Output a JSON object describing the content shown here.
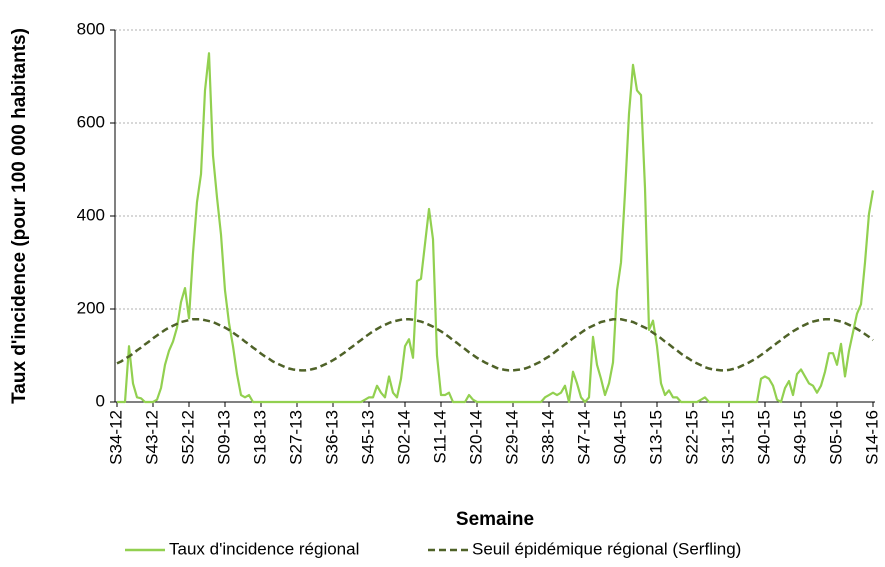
{
  "chart_data": {
    "type": "line",
    "xlabel": "Semaine",
    "ylabel": "Taux d'incidence (pour 100 000 habitants)",
    "categories": [
      "S34-12",
      null,
      null,
      null,
      null,
      null,
      null,
      null,
      null,
      "S43-12",
      null,
      null,
      null,
      null,
      null,
      null,
      null,
      null,
      "S52-12",
      null,
      null,
      null,
      null,
      null,
      null,
      null,
      null,
      "S09-13",
      null,
      null,
      null,
      null,
      null,
      null,
      null,
      null,
      "S18-13",
      null,
      null,
      null,
      null,
      null,
      null,
      null,
      null,
      "S27-13",
      null,
      null,
      null,
      null,
      null,
      null,
      null,
      null,
      "S36-13",
      null,
      null,
      null,
      null,
      null,
      null,
      null,
      null,
      "S45-13",
      null,
      null,
      null,
      null,
      null,
      null,
      null,
      null,
      "S02-14",
      null,
      null,
      null,
      null,
      null,
      null,
      null,
      null,
      "S11-14",
      null,
      null,
      null,
      null,
      null,
      null,
      null,
      null,
      "S20-14",
      null,
      null,
      null,
      null,
      null,
      null,
      null,
      null,
      "S29-14",
      null,
      null,
      null,
      null,
      null,
      null,
      null,
      null,
      "S38-14",
      null,
      null,
      null,
      null,
      null,
      null,
      null,
      null,
      "S47-14",
      null,
      null,
      null,
      null,
      null,
      null,
      null,
      null,
      "S04-15",
      null,
      null,
      null,
      null,
      null,
      null,
      null,
      null,
      "S13-15",
      null,
      null,
      null,
      null,
      null,
      null,
      null,
      null,
      "S22-15",
      null,
      null,
      null,
      null,
      null,
      null,
      null,
      null,
      "S31-15",
      null,
      null,
      null,
      null,
      null,
      null,
      null,
      null,
      "S40-15",
      null,
      null,
      null,
      null,
      null,
      null,
      null,
      null,
      "S49-15",
      null,
      null,
      null,
      null,
      null,
      null,
      null,
      null,
      "S05-16",
      null,
      null,
      null,
      null,
      null,
      null,
      null,
      null,
      "S14-16"
    ],
    "series": [
      {
        "name": "Taux d'incidence régional",
        "color": "#92d050",
        "dash": false,
        "values": [
          0,
          0,
          0,
          120,
          40,
          10,
          8,
          0,
          0,
          0,
          5,
          30,
          80,
          110,
          130,
          160,
          215,
          245,
          180,
          320,
          430,
          490,
          670,
          750,
          530,
          440,
          360,
          240,
          170,
          120,
          60,
          15,
          10,
          15,
          0,
          0,
          0,
          0,
          0,
          0,
          0,
          0,
          0,
          0,
          0,
          0,
          0,
          0,
          0,
          0,
          0,
          0,
          0,
          0,
          0,
          0,
          0,
          0,
          0,
          0,
          0,
          0,
          5,
          10,
          10,
          35,
          20,
          10,
          55,
          20,
          10,
          50,
          120,
          135,
          95,
          260,
          265,
          340,
          415,
          350,
          100,
          15,
          15,
          20,
          0,
          0,
          0,
          0,
          15,
          5,
          0,
          0,
          0,
          0,
          0,
          0,
          0,
          0,
          0,
          0,
          0,
          0,
          0,
          0,
          0,
          0,
          0,
          10,
          15,
          20,
          15,
          20,
          35,
          0,
          65,
          40,
          10,
          0,
          10,
          140,
          80,
          50,
          15,
          40,
          85,
          240,
          300,
          450,
          620,
          725,
          670,
          660,
          460,
          155,
          175,
          120,
          40,
          15,
          25,
          10,
          10,
          0,
          0,
          0,
          0,
          0,
          5,
          10,
          0,
          0,
          0,
          0,
          0,
          0,
          0,
          0,
          0,
          0,
          0,
          0,
          0,
          50,
          55,
          50,
          35,
          5,
          0,
          30,
          45,
          15,
          60,
          70,
          55,
          40,
          35,
          20,
          35,
          65,
          105,
          105,
          80,
          125,
          55,
          110,
          150,
          190,
          210,
          300,
          405,
          455
        ]
      },
      {
        "name": "Seuil épidémique régional (Serfling)",
        "color": "#4f6228",
        "dash": true,
        "values": [
          83,
          87,
          93,
          98,
          104,
          111,
          117,
          124,
          130,
          137,
          143,
          149,
          155,
          160,
          164,
          168,
          172,
          174,
          176,
          178,
          178,
          178,
          176,
          174,
          172,
          168,
          164,
          160,
          155,
          149,
          143,
          137,
          130,
          124,
          117,
          111,
          104,
          98,
          93,
          87,
          83,
          79,
          75,
          72,
          70,
          69,
          68,
          68,
          69,
          71,
          73,
          77,
          81,
          85,
          90,
          95,
          101,
          107,
          114,
          120,
          127,
          133,
          140,
          146,
          152,
          157,
          162,
          166,
          170,
          173,
          175,
          177,
          178,
          178,
          177,
          175,
          173,
          170,
          166,
          162,
          157,
          152,
          146,
          140,
          133,
          127,
          120,
          114,
          107,
          101,
          95,
          90,
          85,
          81,
          77,
          73,
          71,
          69,
          68,
          68,
          69,
          70,
          72,
          75,
          79,
          83,
          87,
          93,
          98,
          104,
          111,
          117,
          124,
          130,
          137,
          143,
          149,
          155,
          160,
          164,
          168,
          172,
          174,
          176,
          178,
          178,
          178,
          176,
          174,
          172,
          168,
          164,
          160,
          155,
          149,
          143,
          137,
          130,
          124,
          117,
          111,
          104,
          98,
          93,
          87,
          83,
          79,
          75,
          72,
          70,
          69,
          68,
          68,
          69,
          71,
          73,
          77,
          81,
          85,
          90,
          95,
          101,
          107,
          114,
          120,
          127,
          133,
          140,
          146,
          152,
          157,
          162,
          166,
          170,
          173,
          175,
          177,
          178,
          178,
          177,
          175,
          173,
          170,
          166,
          162,
          157,
          152,
          146,
          140,
          133
        ]
      }
    ],
    "ylim": [
      0,
      800
    ],
    "yticks": [
      0,
      200,
      400,
      600,
      800
    ],
    "grid": true,
    "legend": "bottom"
  }
}
